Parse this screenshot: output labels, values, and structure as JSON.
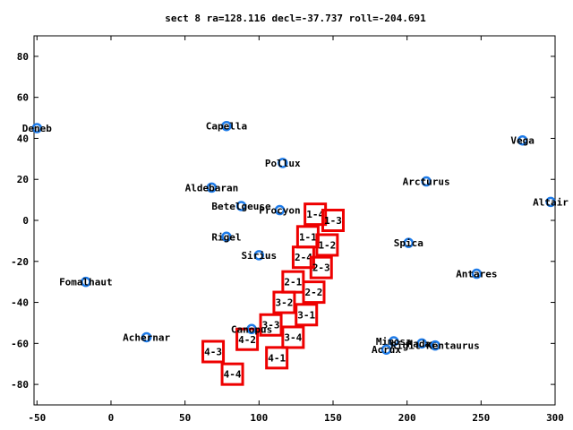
{
  "chart_data": {
    "type": "scatter",
    "title": "sect 8 ra=128.116 decl=-37.737 roll=-204.691",
    "xlim": [
      -52,
      300
    ],
    "ylim": [
      -90,
      90
    ],
    "x_ticks": [
      -50,
      0,
      50,
      100,
      150,
      200,
      250,
      300
    ],
    "y_ticks": [
      -80,
      -60,
      -40,
      -20,
      0,
      20,
      40,
      60,
      80
    ],
    "grid": false,
    "colors": {
      "star": "#1e7be8",
      "box": "#ee0000",
      "axis": "#000000"
    },
    "stars": [
      {
        "name": "Deneb",
        "x": -50,
        "y": 45
      },
      {
        "name": "Capella",
        "x": 78,
        "y": 46
      },
      {
        "name": "Vega",
        "x": 278,
        "y": 39
      },
      {
        "name": "Pollux",
        "x": 116,
        "y": 28
      },
      {
        "name": "Arcturus",
        "x": 213,
        "y": 19
      },
      {
        "name": "Aldebaran",
        "x": 68,
        "y": 16
      },
      {
        "name": "Altair",
        "x": 297,
        "y": 9
      },
      {
        "name": "Betelgeuse",
        "x": 88,
        "y": 7
      },
      {
        "name": "Procyon",
        "x": 114,
        "y": 5
      },
      {
        "name": "Rigel",
        "x": 78,
        "y": -8
      },
      {
        "name": "Spica",
        "x": 201,
        "y": -11
      },
      {
        "name": "Sirius",
        "x": 100,
        "y": -17
      },
      {
        "name": "Antares",
        "x": 247,
        "y": -26
      },
      {
        "name": "Fomalhaut",
        "x": -17,
        "y": -30
      },
      {
        "name": "Canopus",
        "x": 95,
        "y": -53
      },
      {
        "name": "Achernar",
        "x": 24,
        "y": -57
      },
      {
        "name": "Mimosa",
        "x": 191,
        "y": -59
      },
      {
        "name": "Hadar",
        "x": 210,
        "y": -60
      },
      {
        "name": "Rigil Kentaurus",
        "x": 219,
        "y": -61
      },
      {
        "name": "Acrux",
        "x": 186,
        "y": -63
      }
    ],
    "boxes": [
      {
        "label": "1-4",
        "x": 138,
        "y": 3
      },
      {
        "label": "1-3",
        "x": 150,
        "y": 0
      },
      {
        "label": "1-1",
        "x": 133,
        "y": -8
      },
      {
        "label": "1-2",
        "x": 146,
        "y": -12
      },
      {
        "label": "2-4",
        "x": 130,
        "y": -18
      },
      {
        "label": "2-3",
        "x": 142,
        "y": -23
      },
      {
        "label": "2-1",
        "x": 123,
        "y": -30
      },
      {
        "label": "2-2",
        "x": 137,
        "y": -35
      },
      {
        "label": "3-2",
        "x": 117,
        "y": -40
      },
      {
        "label": "3-1",
        "x": 132,
        "y": -46
      },
      {
        "label": "3-3",
        "x": 108,
        "y": -51
      },
      {
        "label": "4-2",
        "x": 92,
        "y": -58
      },
      {
        "label": "3-4",
        "x": 123,
        "y": -57
      },
      {
        "label": "4-3",
        "x": 69,
        "y": -64
      },
      {
        "label": "4-1",
        "x": 112,
        "y": -67
      },
      {
        "label": "4-4",
        "x": 82,
        "y": -75
      }
    ]
  }
}
